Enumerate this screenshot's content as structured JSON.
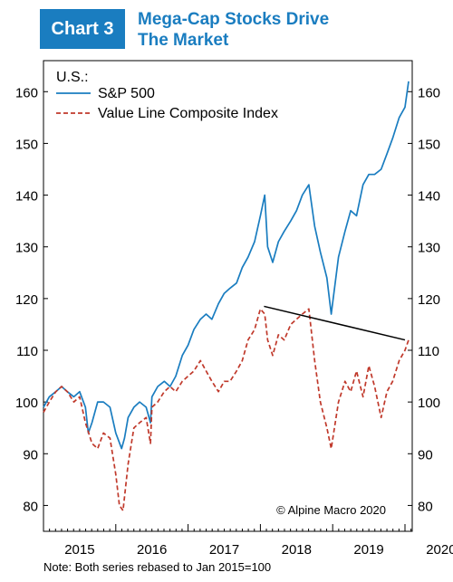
{
  "header": {
    "badge": "Chart 3",
    "title_line1": "Mega-Cap Stocks Drive",
    "title_line2": "The Market"
  },
  "note": "Note: Both series rebased to Jan 2015=100",
  "chart_data": {
    "type": "line",
    "title": "Mega-Cap Stocks Drive The Market",
    "legend_title": "U.S.:",
    "legend_position": "top-left",
    "copyright": "© Alpine Macro 2020",
    "ylim": [
      75,
      166
    ],
    "yticks": [
      80,
      90,
      100,
      110,
      120,
      130,
      140,
      150,
      160
    ],
    "xlim": [
      2015.0,
      2020.9
    ],
    "xtick_labels": [
      "2015",
      "2016",
      "2017",
      "2018",
      "2019",
      "2020"
    ],
    "grid": false,
    "colors": {
      "sp500": "#1a7dc0",
      "valueline": "#c0392b",
      "trend": "#000000"
    },
    "series": [
      {
        "name": "S&P 500",
        "style": "solid",
        "x": [
          2015.0,
          2015.08,
          2015.17,
          2015.25,
          2015.33,
          2015.42,
          2015.5,
          2015.58,
          2015.62,
          2015.67,
          2015.75,
          2015.83,
          2015.92,
          2016.0,
          2016.08,
          2016.12,
          2016.17,
          2016.25,
          2016.33,
          2016.42,
          2016.48,
          2016.5,
          2016.58,
          2016.67,
          2016.75,
          2016.83,
          2016.92,
          2017.0,
          2017.08,
          2017.17,
          2017.25,
          2017.33,
          2017.42,
          2017.5,
          2017.58,
          2017.67,
          2017.75,
          2017.83,
          2017.92,
          2018.0,
          2018.06,
          2018.1,
          2018.17,
          2018.25,
          2018.33,
          2018.42,
          2018.5,
          2018.58,
          2018.67,
          2018.75,
          2018.83,
          2018.92,
          2018.98,
          2019.08,
          2019.17,
          2019.25,
          2019.33,
          2019.42,
          2019.5,
          2019.58,
          2019.67,
          2019.75,
          2019.83,
          2019.92,
          2020.0,
          2020.05
        ],
        "y": [
          99,
          101,
          102,
          103,
          102,
          101,
          102,
          99,
          94,
          96,
          100,
          100,
          99,
          94,
          91,
          93,
          97,
          99,
          100,
          99,
          96,
          101,
          103,
          104,
          103,
          105,
          109,
          111,
          114,
          116,
          117,
          116,
          119,
          121,
          122,
          123,
          126,
          128,
          131,
          136,
          140,
          130,
          127,
          131,
          133,
          135,
          137,
          140,
          142,
          134,
          129,
          124,
          117,
          128,
          133,
          137,
          136,
          142,
          144,
          144,
          145,
          148,
          151,
          155,
          157,
          162
        ]
      },
      {
        "name": "Value Line Composite Index",
        "style": "dashed",
        "x": [
          2015.0,
          2015.08,
          2015.17,
          2015.25,
          2015.33,
          2015.42,
          2015.5,
          2015.58,
          2015.67,
          2015.75,
          2015.83,
          2015.92,
          2016.0,
          2016.05,
          2016.1,
          2016.17,
          2016.25,
          2016.33,
          2016.42,
          2016.48,
          2016.5,
          2016.58,
          2016.67,
          2016.75,
          2016.83,
          2016.92,
          2017.0,
          2017.08,
          2017.17,
          2017.25,
          2017.33,
          2017.42,
          2017.5,
          2017.58,
          2017.67,
          2017.75,
          2017.83,
          2017.92,
          2018.0,
          2018.06,
          2018.1,
          2018.17,
          2018.25,
          2018.33,
          2018.42,
          2018.5,
          2018.58,
          2018.67,
          2018.75,
          2018.83,
          2018.92,
          2018.98,
          2019.08,
          2019.17,
          2019.25,
          2019.33,
          2019.42,
          2019.5,
          2019.58,
          2019.67,
          2019.75,
          2019.83,
          2019.92,
          2020.0,
          2020.05
        ],
        "y": [
          98,
          100,
          102,
          103,
          102,
          100,
          101,
          96,
          92,
          91,
          94,
          93,
          86,
          80,
          79,
          88,
          95,
          96,
          97,
          92,
          99,
          100,
          102,
          103,
          102,
          104,
          105,
          106,
          108,
          106,
          104,
          102,
          104,
          104,
          106,
          108,
          112,
          114,
          118,
          117,
          112,
          109,
          113,
          112,
          115,
          116,
          117,
          118,
          108,
          100,
          95,
          91,
          100,
          104,
          102,
          106,
          101,
          107,
          103,
          97,
          102,
          104,
          108,
          110,
          112
        ]
      }
    ],
    "trendline": {
      "x": [
        2018.05,
        2020.0
      ],
      "y": [
        118.5,
        112
      ]
    }
  }
}
